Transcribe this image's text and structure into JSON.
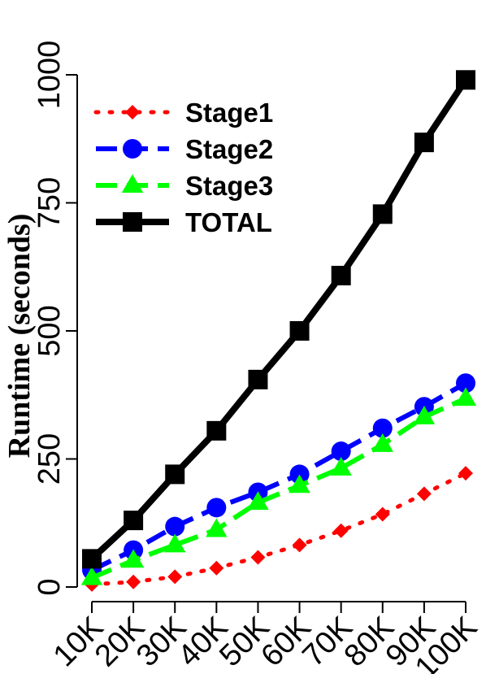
{
  "chart_data": {
    "type": "line",
    "x": [
      "10K",
      "20K",
      "30K",
      "40K",
      "50K",
      "60K",
      "70K",
      "80K",
      "90K",
      "100K"
    ],
    "ylabel": "Runtime (seconds)",
    "yticks": [
      0,
      250,
      500,
      750,
      1000
    ],
    "ylim": [
      0,
      1000
    ],
    "legend_position": "top-left",
    "series": [
      {
        "name": "Stage1",
        "color": "#ff0000",
        "marker": "diamond",
        "dash": "dotted",
        "values": [
          5,
          10,
          20,
          37,
          58,
          82,
          110,
          142,
          182,
          222
        ]
      },
      {
        "name": "Stage2",
        "color": "#0000ff",
        "marker": "circle",
        "dash": "dashed",
        "values": [
          33,
          72,
          118,
          155,
          185,
          220,
          265,
          310,
          352,
          398
        ]
      },
      {
        "name": "Stage3",
        "color": "#00ff00",
        "marker": "triangle",
        "dash": "dashed",
        "values": [
          18,
          52,
          82,
          112,
          165,
          198,
          232,
          278,
          332,
          368
        ]
      },
      {
        "name": "TOTAL",
        "color": "#000000",
        "marker": "square",
        "dash": "solid",
        "values": [
          55,
          130,
          220,
          305,
          405,
          500,
          608,
          728,
          868,
          990
        ]
      }
    ]
  }
}
